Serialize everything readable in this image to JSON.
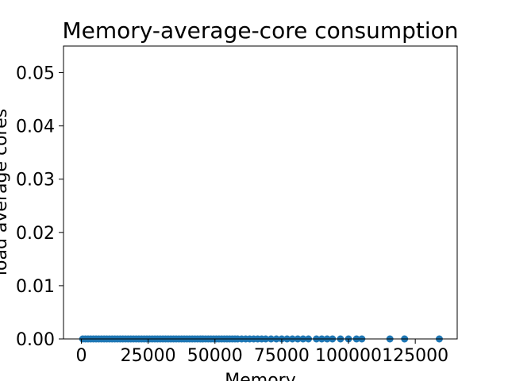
{
  "chart_data": {
    "type": "scatter",
    "title": "Memory-average-core consumption",
    "xlabel": "Memory",
    "ylabel": "load average cores",
    "xlim": [
      -6700,
      140700
    ],
    "ylim": [
      0,
      0.055
    ],
    "xticks": [
      0,
      25000,
      50000,
      75000,
      100000,
      125000
    ],
    "xtick_labels": [
      "0",
      "25000",
      "50000",
      "75000",
      "100000",
      "125000"
    ],
    "yticks": [
      0,
      0.01,
      0.02,
      0.03,
      0.04,
      0.05
    ],
    "ytick_labels": [
      "0.00",
      "0.01",
      "0.02",
      "0.03",
      "0.04",
      "0.05"
    ],
    "grid": false,
    "marker_color": "#1f77b4",
    "series": [
      {
        "x": [
          500,
          1500,
          2500,
          3500,
          4500,
          5500,
          6500,
          7500,
          8500,
          9500,
          10500,
          11500,
          12500,
          13500,
          14500,
          15500,
          16500,
          17500,
          18500,
          19500,
          20500,
          21500,
          22500,
          23500,
          24500,
          25500,
          26500,
          27500,
          28500,
          29500,
          30500,
          31500,
          32500,
          33500,
          34500,
          35500,
          36500,
          37500,
          38500,
          39500,
          40500,
          41500,
          42500,
          43500,
          44500,
          45500,
          46500,
          47500,
          48500,
          49500,
          50500,
          51500,
          52500,
          53500,
          54500,
          55500,
          56500,
          57500,
          58500,
          60000,
          61500,
          63000,
          64500,
          66000,
          67500,
          69000,
          71000,
          73000,
          75000,
          77000,
          79000,
          81000,
          83000,
          85000,
          88000,
          90000,
          92000,
          94000,
          97000,
          100000,
          103000,
          105000,
          115500,
          121000,
          134000
        ],
        "y": [
          0,
          0,
          0,
          0,
          0,
          0,
          0,
          0,
          0,
          0,
          0,
          0,
          0,
          0,
          0,
          0,
          0,
          0,
          0,
          0,
          0,
          0,
          0,
          0,
          0,
          0,
          0,
          0,
          0,
          0,
          0,
          0,
          0,
          0,
          0,
          0,
          0,
          0,
          0,
          0,
          0,
          0,
          0,
          0,
          0,
          0,
          0,
          0,
          0,
          0,
          0,
          0,
          0,
          0,
          0,
          0,
          0,
          0,
          0,
          0,
          0,
          0,
          0,
          0,
          0,
          0,
          0,
          0,
          0,
          0,
          0,
          0,
          0,
          0,
          0,
          0,
          0,
          0,
          0,
          0,
          0,
          0,
          0,
          0,
          0
        ]
      }
    ]
  }
}
